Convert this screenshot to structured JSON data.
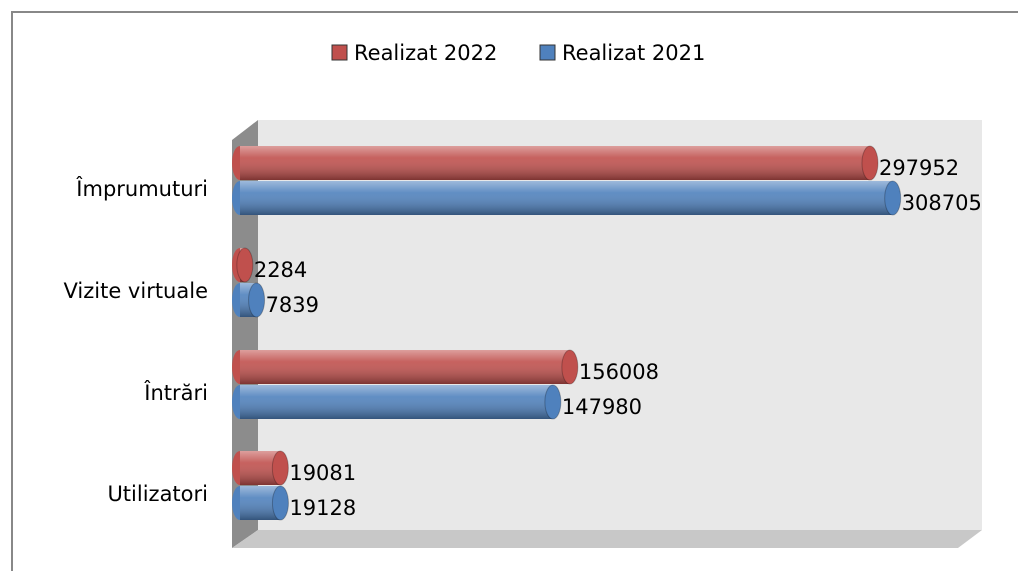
{
  "chart_data": {
    "type": "bar",
    "orientation": "horizontal",
    "categories": [
      "Împrumuturi",
      "Vizite virtuale",
      "Întrări",
      "Utilizatori"
    ],
    "series": [
      {
        "name": "Realizat 2022",
        "color": "#c0504d",
        "values": [
          297952,
          2284,
          156008,
          19081
        ]
      },
      {
        "name": "Realizat 2021",
        "color": "#4f81bd",
        "values": [
          308705,
          7839,
          147980,
          19128
        ]
      }
    ],
    "xlim": [
      0,
      350000
    ],
    "legend": "top"
  }
}
